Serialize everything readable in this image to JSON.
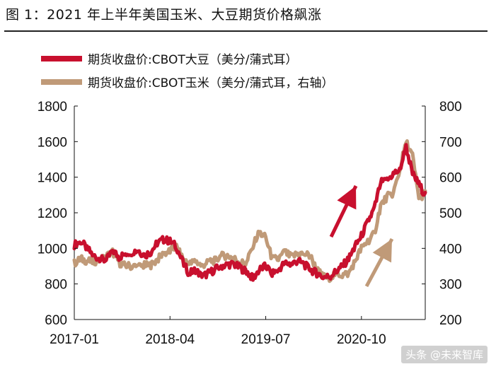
{
  "header": {
    "figure_title": "图 1：2021 年上半年美国玉米、大豆期货价格飙涨"
  },
  "watermark": "头条 @未来智库",
  "colors": {
    "soy": "#c8102e",
    "corn": "#c09a78",
    "soy_arrow": "#c8102e",
    "corn_arrow": "#c09a78"
  },
  "chart_data": {
    "type": "line",
    "title": "",
    "x_tick_labels": [
      "2017-01",
      "2018-04",
      "2019-07",
      "2020-10"
    ],
    "x_tick_dates": [
      "2017-01",
      "2018-04",
      "2019-07",
      "2020-10"
    ],
    "x_range": [
      "2017-01",
      "2021-08"
    ],
    "y_left": {
      "range": [
        600,
        1800
      ],
      "ticks": [
        600,
        800,
        1000,
        1200,
        1400,
        1600,
        1800
      ]
    },
    "y_right": {
      "range": [
        200,
        800
      ],
      "ticks": [
        200,
        300,
        400,
        500,
        600,
        700,
        800
      ]
    },
    "grid": false,
    "legend_position": "top",
    "series": [
      {
        "name": "期货收盘价:CBOT大豆（美分/蒲式耳）",
        "axis": "left",
        "color": "#c8102e",
        "points": [
          [
            "2017-01",
            1020
          ],
          [
            "2017-02",
            1040
          ],
          [
            "2017-03",
            1000
          ],
          [
            "2017-04",
            960
          ],
          [
            "2017-05",
            940
          ],
          [
            "2017-06",
            930
          ],
          [
            "2017-07",
            990
          ],
          [
            "2017-08",
            950
          ],
          [
            "2017-09",
            970
          ],
          [
            "2017-10",
            980
          ],
          [
            "2017-11",
            990
          ],
          [
            "2017-12",
            960
          ],
          [
            "2018-01",
            980
          ],
          [
            "2018-02",
            1030
          ],
          [
            "2018-03",
            1050
          ],
          [
            "2018-04",
            1040
          ],
          [
            "2018-05",
            1010
          ],
          [
            "2018-06",
            920
          ],
          [
            "2018-07",
            860
          ],
          [
            "2018-08",
            880
          ],
          [
            "2018-09",
            840
          ],
          [
            "2018-10",
            860
          ],
          [
            "2018-11",
            880
          ],
          [
            "2018-12",
            900
          ],
          [
            "2019-01",
            910
          ],
          [
            "2019-02",
            910
          ],
          [
            "2019-03",
            890
          ],
          [
            "2019-04",
            870
          ],
          [
            "2019-05",
            830
          ],
          [
            "2019-06",
            880
          ],
          [
            "2019-07",
            900
          ],
          [
            "2019-08",
            860
          ],
          [
            "2019-09",
            880
          ],
          [
            "2019-10",
            920
          ],
          [
            "2019-11",
            910
          ],
          [
            "2019-12",
            930
          ],
          [
            "2020-01",
            910
          ],
          [
            "2020-02",
            880
          ],
          [
            "2020-03",
            860
          ],
          [
            "2020-04",
            840
          ],
          [
            "2020-05",
            840
          ],
          [
            "2020-06",
            870
          ],
          [
            "2020-07",
            900
          ],
          [
            "2020-08",
            940
          ],
          [
            "2020-09",
            1010
          ],
          [
            "2020-10",
            1070
          ],
          [
            "2020-11",
            1150
          ],
          [
            "2020-12",
            1220
          ],
          [
            "2021-01",
            1370
          ],
          [
            "2021-02",
            1380
          ],
          [
            "2021-03",
            1420
          ],
          [
            "2021-04",
            1440
          ],
          [
            "2021-05",
            1570
          ],
          [
            "2021-06",
            1420
          ],
          [
            "2021-07",
            1360
          ],
          [
            "2021-08",
            1300
          ]
        ]
      },
      {
        "name": "期货收盘价:CBOT玉米（美分/蒲式耳，右轴）",
        "axis": "right",
        "color": "#c09a78",
        "points": [
          [
            "2017-01",
            358
          ],
          [
            "2017-02",
            370
          ],
          [
            "2017-03",
            365
          ],
          [
            "2017-04",
            362
          ],
          [
            "2017-05",
            370
          ],
          [
            "2017-06",
            378
          ],
          [
            "2017-07",
            390
          ],
          [
            "2017-08",
            360
          ],
          [
            "2017-09",
            352
          ],
          [
            "2017-10",
            350
          ],
          [
            "2017-11",
            348
          ],
          [
            "2017-12",
            352
          ],
          [
            "2018-01",
            352
          ],
          [
            "2018-02",
            368
          ],
          [
            "2018-03",
            385
          ],
          [
            "2018-04",
            392
          ],
          [
            "2018-05",
            405
          ],
          [
            "2018-06",
            370
          ],
          [
            "2018-07",
            355
          ],
          [
            "2018-08",
            365
          ],
          [
            "2018-09",
            350
          ],
          [
            "2018-10",
            365
          ],
          [
            "2018-11",
            365
          ],
          [
            "2018-12",
            378
          ],
          [
            "2019-01",
            380
          ],
          [
            "2019-02",
            372
          ],
          [
            "2019-03",
            360
          ],
          [
            "2019-04",
            358
          ],
          [
            "2019-05",
            410
          ],
          [
            "2019-06",
            445
          ],
          [
            "2019-07",
            430
          ],
          [
            "2019-08",
            370
          ],
          [
            "2019-09",
            370
          ],
          [
            "2019-10",
            390
          ],
          [
            "2019-11",
            375
          ],
          [
            "2019-12",
            385
          ],
          [
            "2020-01",
            385
          ],
          [
            "2020-02",
            378
          ],
          [
            "2020-03",
            340
          ],
          [
            "2020-04",
            320
          ],
          [
            "2020-05",
            318
          ],
          [
            "2020-06",
            330
          ],
          [
            "2020-07",
            325
          ],
          [
            "2020-08",
            330
          ],
          [
            "2020-09",
            365
          ],
          [
            "2020-10",
            400
          ],
          [
            "2020-11",
            420
          ],
          [
            "2020-12",
            440
          ],
          [
            "2021-01",
            520
          ],
          [
            "2021-02",
            545
          ],
          [
            "2021-03",
            555
          ],
          [
            "2021-04",
            620
          ],
          [
            "2021-05",
            700
          ],
          [
            "2021-06",
            660
          ],
          [
            "2021-07",
            540
          ],
          [
            "2021-08",
            555
          ]
        ]
      }
    ]
  }
}
